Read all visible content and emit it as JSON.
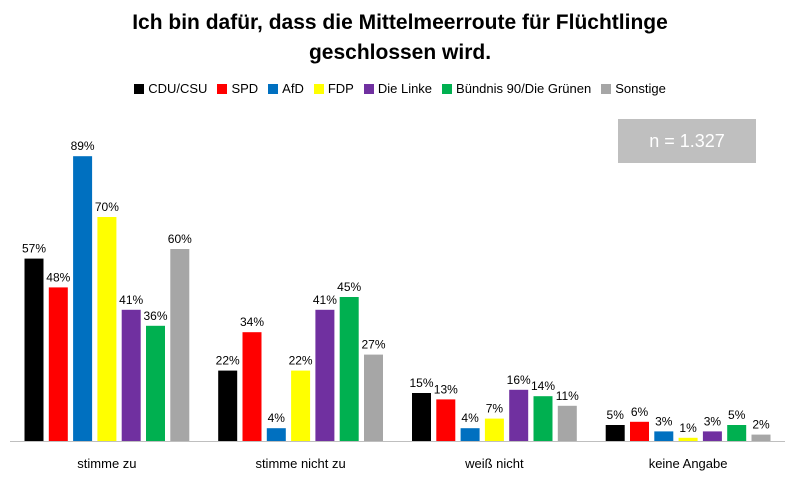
{
  "chart_data": {
    "type": "bar",
    "title_lines": [
      "Ich bin dafür, dass die Mittelmeerroute für Flüchtlinge",
      "geschlossen wird."
    ],
    "annotation": "n = 1.327",
    "legend_placement": "top",
    "grid": false,
    "ylim": [
      0,
      100
    ],
    "categories": [
      "stimme zu",
      "stimme nicht zu",
      "weiß nicht",
      "keine Angabe"
    ],
    "series": [
      {
        "name": "CDU/CSU",
        "color": "#000000",
        "values": [
          57,
          22,
          15,
          5
        ]
      },
      {
        "name": "SPD",
        "color": "#ff0000",
        "values": [
          48,
          34,
          13,
          6
        ]
      },
      {
        "name": "AfD",
        "color": "#0070c0",
        "values": [
          89,
          4,
          4,
          3
        ]
      },
      {
        "name": "FDP",
        "color": "#ffff00",
        "values": [
          70,
          22,
          7,
          1
        ]
      },
      {
        "name": "Die Linke",
        "color": "#7030a0",
        "values": [
          41,
          41,
          16,
          3
        ]
      },
      {
        "name": "Bündnis 90/Die Grünen",
        "color": "#00b050",
        "values": [
          36,
          45,
          14,
          5
        ]
      },
      {
        "name": "Sonstige",
        "color": "#a6a6a6",
        "values": [
          60,
          27,
          11,
          2
        ]
      }
    ],
    "value_suffix": "%"
  }
}
